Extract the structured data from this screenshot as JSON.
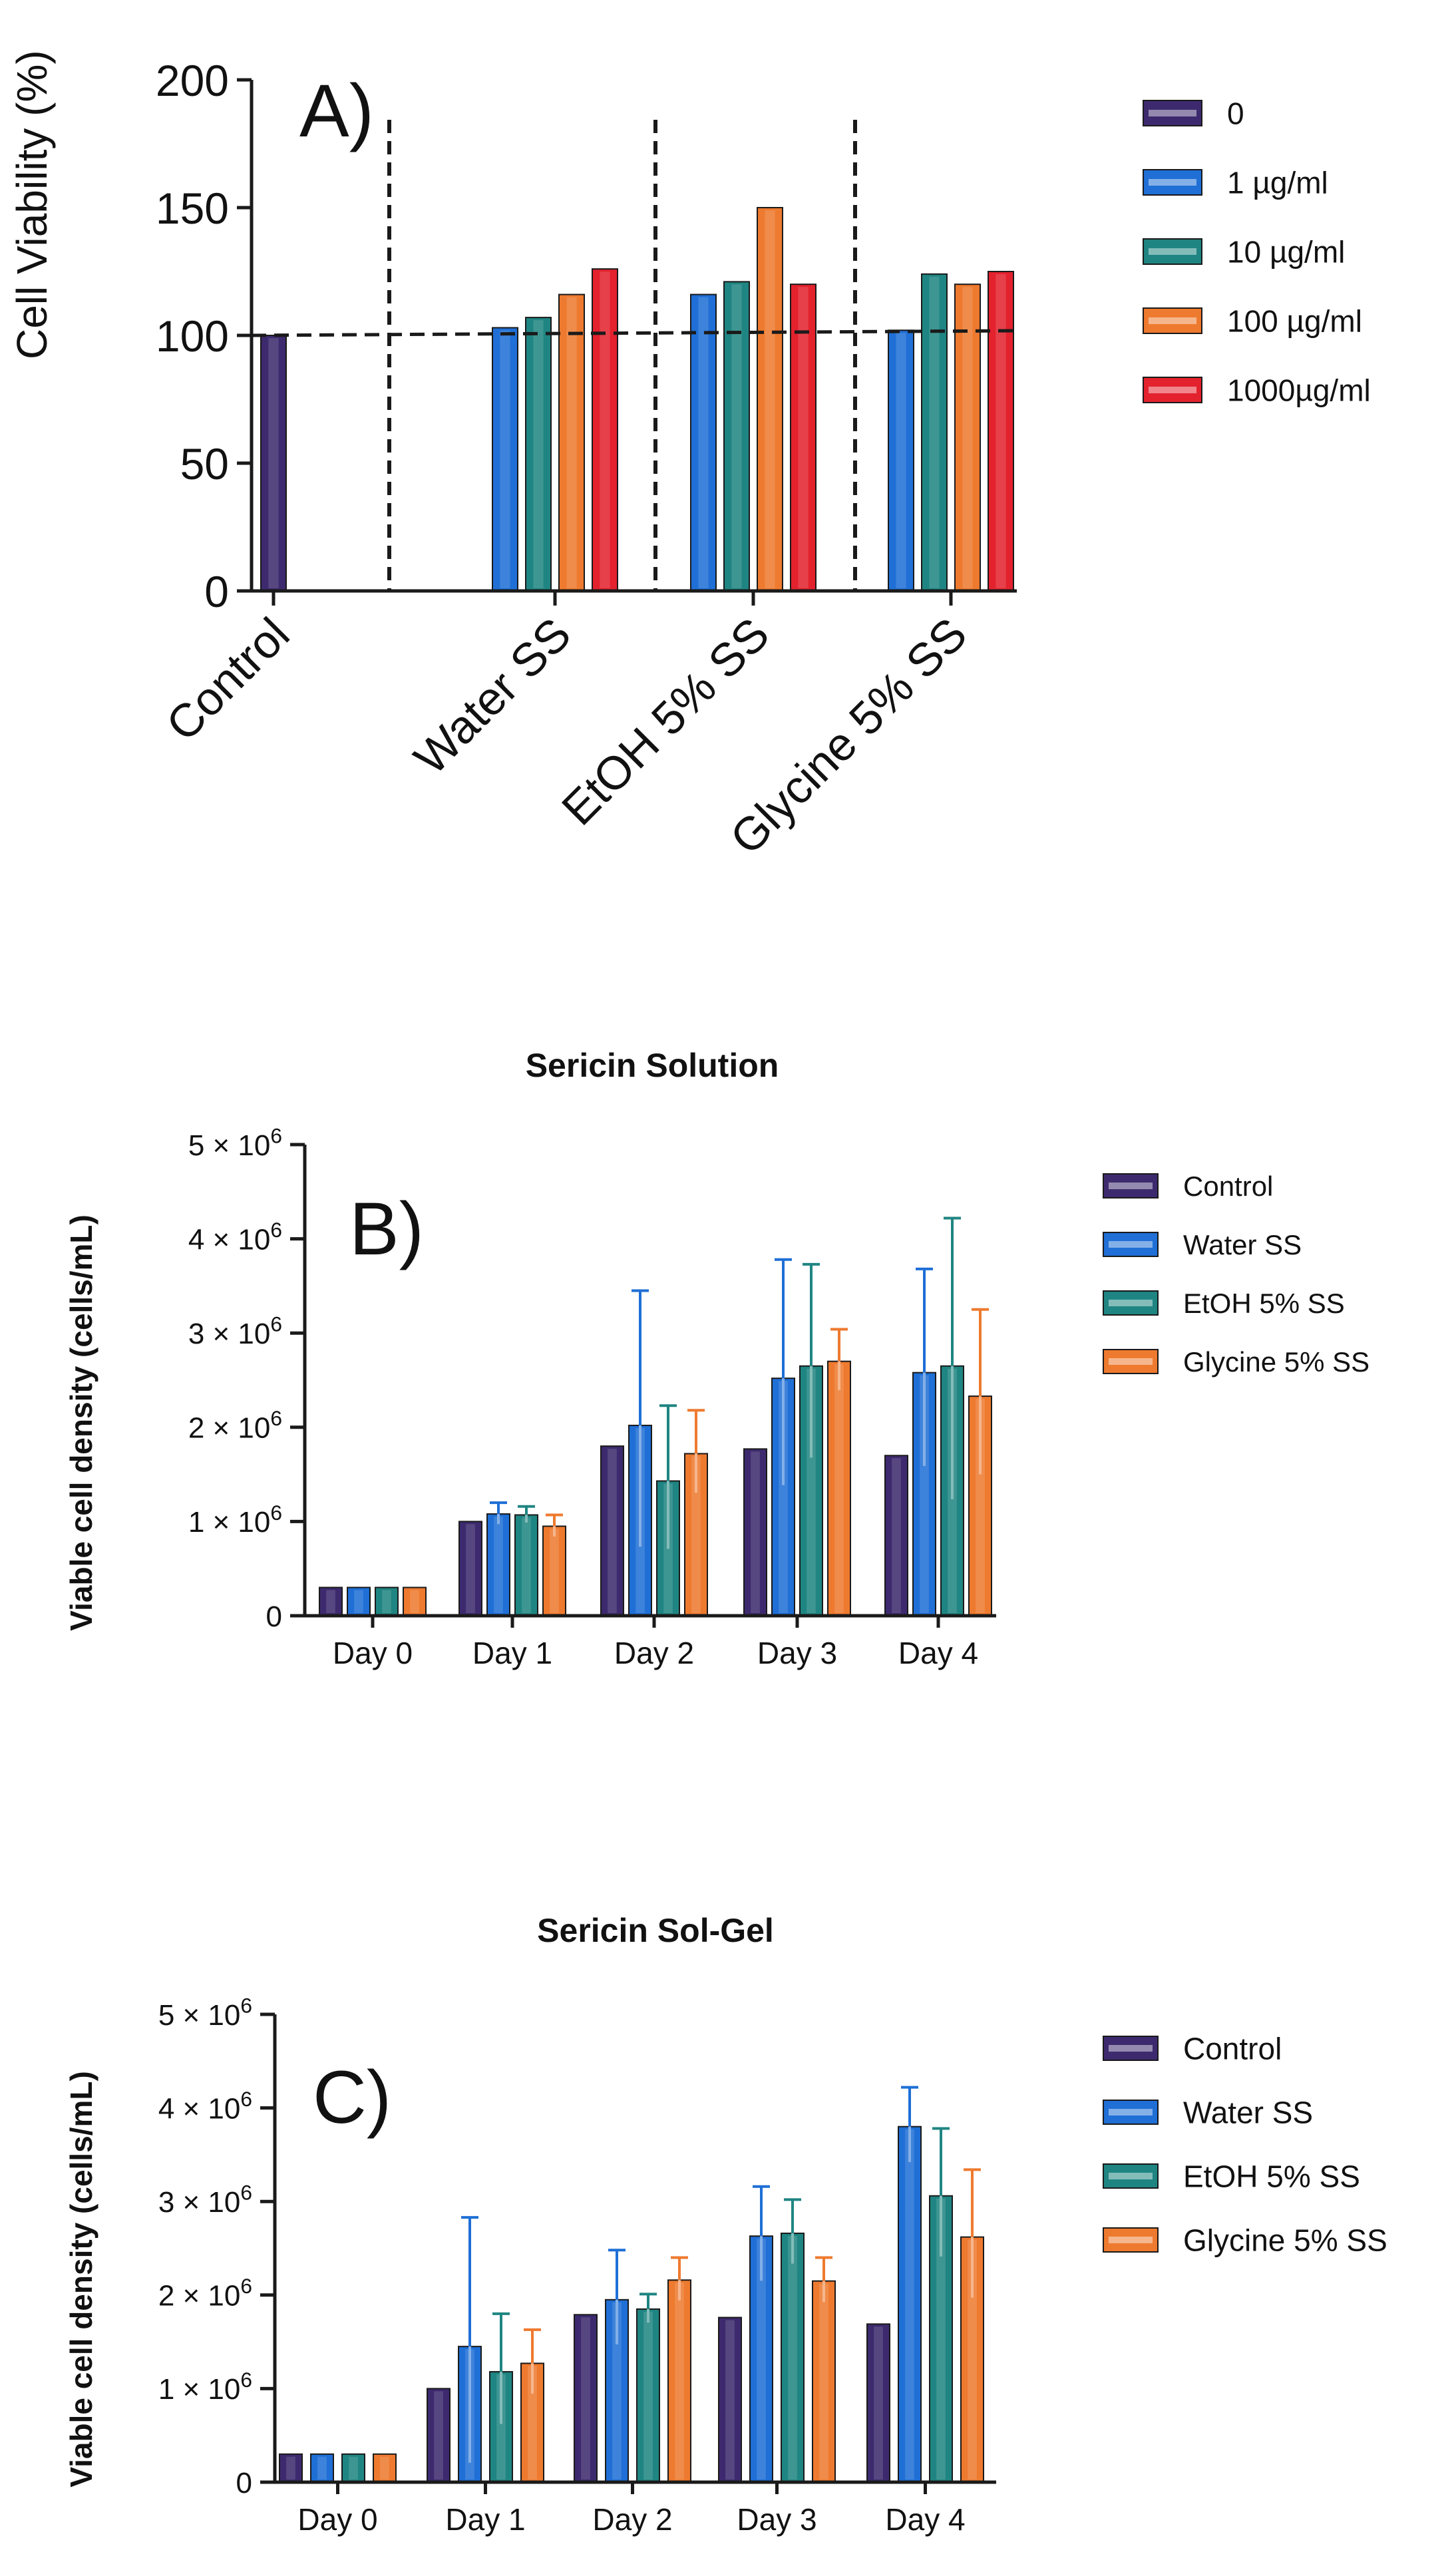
{
  "colors": {
    "purple": "#3d2a6e",
    "blue": "#1f6fd6",
    "teal": "#1f8582",
    "orange": "#ee7a2f",
    "red": "#e3222e"
  },
  "chart_data": [
    {
      "id": "A",
      "type": "bar",
      "panel_label": "A)",
      "ylabel": "Cell Viability (%)",
      "ylim": [
        0,
        200
      ],
      "yticks": [
        "0",
        "50",
        "100",
        "150",
        "200"
      ],
      "ytick_values": [
        0,
        50,
        100,
        150,
        200
      ],
      "categories": [
        "Control",
        "Water SS",
        "EtOH 5% SS",
        "Glycine 5% SS"
      ],
      "reference_line": 100,
      "legend_position": "right",
      "series": [
        {
          "name": "0",
          "color": "purple",
          "values": [
            100,
            null,
            null,
            null
          ]
        },
        {
          "name": " 1 µg/ml",
          "color": "blue",
          "values": [
            null,
            103,
            116,
            102
          ]
        },
        {
          "name": "10 µg/ml",
          "color": "teal",
          "values": [
            null,
            107,
            121,
            124
          ]
        },
        {
          "name": "100 µg/ml",
          "color": "orange",
          "values": [
            null,
            116,
            150,
            120
          ]
        },
        {
          "name": "1000µg/ml",
          "color": "red",
          "values": [
            null,
            126,
            120,
            125
          ]
        }
      ]
    },
    {
      "id": "B",
      "type": "bar",
      "title": "Sericin Solution",
      "panel_label": "B)",
      "ylabel": "Viable cell density (cells/mL)",
      "ylim": [
        0,
        5000000
      ],
      "ytick_values": [
        0,
        1000000,
        2000000,
        3000000,
        4000000,
        5000000
      ],
      "yticks": [
        {
          "base": "0",
          "exp": ""
        },
        {
          "base": "1 × 10",
          "exp": "6"
        },
        {
          "base": "2 × 10",
          "exp": "6"
        },
        {
          "base": "3 × 10",
          "exp": "6"
        },
        {
          "base": "4 × 10",
          "exp": "6"
        },
        {
          "base": "5 × 10",
          "exp": "6"
        }
      ],
      "categories": [
        "Day 0",
        "Day 1",
        "Day 2",
        "Day 3",
        "Day 4"
      ],
      "legend_position": "right",
      "series": [
        {
          "name": "Control",
          "color": "purple",
          "values": [
            300000,
            1000000,
            1800000,
            1770000,
            1700000
          ],
          "errors": [
            0,
            0,
            0,
            0,
            0
          ]
        },
        {
          "name": "Water SS",
          "color": "blue",
          "values": [
            300000,
            1080000,
            2020000,
            2520000,
            2580000
          ],
          "errors": [
            0,
            120000,
            1430000,
            1260000,
            1100000
          ]
        },
        {
          "name": "EtOH 5% SS",
          "color": "teal",
          "values": [
            300000,
            1070000,
            1430000,
            2650000,
            2650000
          ],
          "errors": [
            0,
            90000,
            800000,
            1080000,
            1570000
          ]
        },
        {
          "name": "Glycine 5% SS",
          "color": "orange",
          "values": [
            300000,
            950000,
            1720000,
            2700000,
            2330000
          ],
          "errors": [
            0,
            120000,
            460000,
            340000,
            920000
          ]
        }
      ]
    },
    {
      "id": "C",
      "type": "bar",
      "title": "Sericin Sol-Gel",
      "panel_label": "C)",
      "ylabel": "Viable cell density (cells/mL)",
      "ylim": [
        0,
        5000000
      ],
      "ytick_values": [
        0,
        1000000,
        2000000,
        3000000,
        4000000,
        5000000
      ],
      "yticks": [
        {
          "base": "0",
          "exp": ""
        },
        {
          "base": "1 × 10",
          "exp": "6"
        },
        {
          "base": "2 × 10",
          "exp": "6"
        },
        {
          "base": "3 × 10",
          "exp": "6"
        },
        {
          "base": "4 × 10",
          "exp": "6"
        },
        {
          "base": "5 × 10",
          "exp": "6"
        }
      ],
      "categories": [
        "Day 0",
        "Day 1",
        "Day 2",
        "Day 3",
        "Day 4"
      ],
      "legend_position": "right",
      "series": [
        {
          "name": "Control",
          "color": "purple",
          "values": [
            300000,
            1000000,
            1790000,
            1760000,
            1690000
          ],
          "errors": [
            0,
            0,
            0,
            0,
            0
          ]
        },
        {
          "name": "Water SS",
          "color": "blue",
          "values": [
            300000,
            1450000,
            1950000,
            2630000,
            3800000
          ],
          "errors": [
            0,
            1380000,
            530000,
            530000,
            420000
          ]
        },
        {
          "name": "EtOH 5% SS",
          "color": "teal",
          "values": [
            300000,
            1180000,
            1850000,
            2660000,
            3060000
          ],
          "errors": [
            0,
            620000,
            160000,
            360000,
            720000
          ]
        },
        {
          "name": "Glycine 5% SS",
          "color": "orange",
          "values": [
            300000,
            1270000,
            2160000,
            2150000,
            2620000
          ],
          "errors": [
            0,
            360000,
            240000,
            250000,
            720000
          ]
        }
      ]
    }
  ]
}
